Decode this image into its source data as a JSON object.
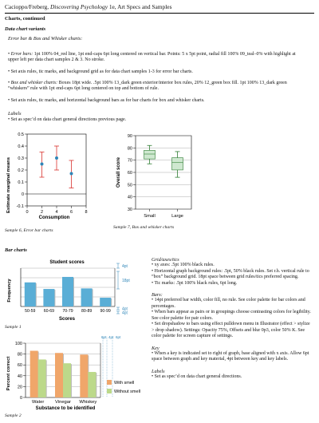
{
  "header": {
    "text_before": "Cacioppo/Freberg, ",
    "book_title": "Discovering Psychology",
    "text_after": " 1e, Art Specs and Samples"
  },
  "section_title": "Charts, continued",
  "data_variants": {
    "heading": "Data chart variants",
    "subheading": "Error bar & Box and Whisker charts:",
    "errorbars_label": "Error bars:",
    "errorbars_text": " 1pt 100% 04_red line, 1pt end-caps 6pt long centered on vertical bar. Points: 5 x 5pt point, radial fill 100% 09_teal–0% with highlight at upper left per data chart samples 2 & 3. No stroke.",
    "errorbars_text2": "• Set axis rules, tic marks, and background grid as for data chart samples 1-3 for error bar charts.",
    "box_label": "Box and whisker charts:",
    "box_text": " Boxes 18pt wide. .5pt 100% 13_dark green exterior/interior box rules, 20% 12_green box fill. 1pt 100% 13_dark green “whiskers” rule with 1pt end-caps 6pt long centered on top and bottom of rule.",
    "box_text2": "• Set axis rules, tic marks, and horizontal background bars as for bar charts for box and whisker charts.",
    "labels_heading": "Labels",
    "labels_text": "• Set as spec’d on data chart general directions previous page."
  },
  "sample6": {
    "caption": "Sample 6, Error bar charts",
    "ylabel": "Estimate marginal means",
    "xlabel": "Consumption",
    "yticks": [
      "0.5",
      "0.4",
      "0.3",
      "0.2",
      "0.1",
      "0",
      "-0.1"
    ],
    "xticks": [
      "0",
      "2",
      "4",
      "6",
      "8"
    ]
  },
  "sample7": {
    "caption": "Sample 7, Box and whisker charts",
    "ylabel": "Overall score",
    "yticks": [
      "90",
      "80",
      "70",
      "60",
      "50",
      "40",
      "30"
    ],
    "categories": [
      "Small",
      "Large"
    ]
  },
  "bar_charts": {
    "heading": "Bar charts"
  },
  "sample1": {
    "caption": "Sample 1",
    "title": "Student scores",
    "ylabel": "Frequency",
    "xlabel": "Scores",
    "categories": [
      "50-59",
      "60-69",
      "70-79",
      "80-89",
      "90-99"
    ],
    "spec_top": "4pt",
    "spec_mid": "18pt",
    "spec_b1": "4pt",
    "spec_b2": "4pt"
  },
  "sample2": {
    "caption": "Sample 2",
    "ylabel": "Percent correct",
    "xlabel": "Substance to be identified",
    "yticks": [
      "100",
      "80",
      "60",
      "40",
      "20",
      "0"
    ],
    "categories": [
      "Water",
      "Vinegar",
      "Whiskey"
    ],
    "legend_with": "With smell",
    "legend_without": "Without smell",
    "spec1": "6pt",
    "spec2": "4pt",
    "spec3": "6pt"
  },
  "right_col": {
    "grid_heading": "Grid/axes/tics",
    "grid_items": [
      "• xy axes: .5pt 100% black rules.",
      "• Horizontal graph background rules: .5pt, 50% black rules. Set r.h. vertical rule to “box” background grid. 18pt space between grid rules/tics preferred spacing.",
      "• Tic marks: .5pt 100% black rules, 6pt long."
    ],
    "bars_heading": "Bars:",
    "bars_items": [
      "• 14pt preferred bar width, color fill, no rule. See color palette for bar colors and percentages.",
      "• When bars appear as pairs or in groupings choose contrasting colors for legibility. See color palette for pair colors.",
      "• Set dropshadow to bars using effect pulldown menu in Illustrator (effect > stylize > drop shadow). Settings: Opacity 75%, Offsets and blur 0p3, color 50% K. See color palette for screen capture of settings."
    ],
    "key_heading": "Key",
    "key_items": [
      "• When a key is indicated set to right of graph, base aligned with x axis. Allow 6pt space between graph and key material, 4pt between key and key labels."
    ],
    "labels_heading": "Labels",
    "labels_items": [
      "• Set as spec’d on data chart general directions."
    ]
  },
  "chart_data": [
    {
      "type": "scatter",
      "title": "",
      "xlabel": "Consumption",
      "ylabel": "Estimate marginal means",
      "xlim": [
        0,
        8
      ],
      "ylim": [
        -0.1,
        0.5
      ],
      "series": [
        {
          "x": [
            2,
            4,
            6
          ],
          "y": [
            0.25,
            0.3,
            0.17
          ],
          "err_low": [
            0.14,
            0.2,
            0.05
          ],
          "err_high": [
            0.35,
            0.4,
            0.28
          ]
        }
      ],
      "colors": {
        "points": "#2f86b8",
        "errorbars": "#d9322e"
      }
    },
    {
      "type": "box",
      "ylabel": "Overall score",
      "categories": [
        "Small",
        "Large"
      ],
      "ylim": [
        30,
        90
      ],
      "boxes": [
        {
          "min": 67,
          "q1": 71,
          "median": 75,
          "q3": 78,
          "max": 82
        },
        {
          "min": 56,
          "q1": 62,
          "median": 68,
          "q3": 72,
          "max": 77
        }
      ],
      "colors": {
        "fill": "#cfe8d0",
        "stroke": "#2e7d32"
      }
    },
    {
      "type": "bar",
      "title": "Student scores",
      "xlabel": "Scores",
      "ylabel": "Frequency",
      "categories": [
        "50-59",
        "60-69",
        "70-79",
        "80-89",
        "90-99"
      ],
      "values": [
        4.4,
        3.2,
        5.4,
        3.3,
        1.6
      ],
      "ylim": [
        0,
        7
      ],
      "colors": {
        "bars": "#5aaed6"
      }
    },
    {
      "type": "bar",
      "xlabel": "Substance to be identified",
      "ylabel": "Percent correct",
      "categories": [
        "Water",
        "Vinegar",
        "Whiskey"
      ],
      "ylim": [
        0,
        100
      ],
      "series": [
        {
          "name": "With smell",
          "values": [
            86,
            82,
            79
          ],
          "color": "#f0a66a"
        },
        {
          "name": "Without smell",
          "values": [
            70,
            63,
            47
          ],
          "color": "#bcd98a"
        }
      ],
      "legend": "right"
    }
  ]
}
